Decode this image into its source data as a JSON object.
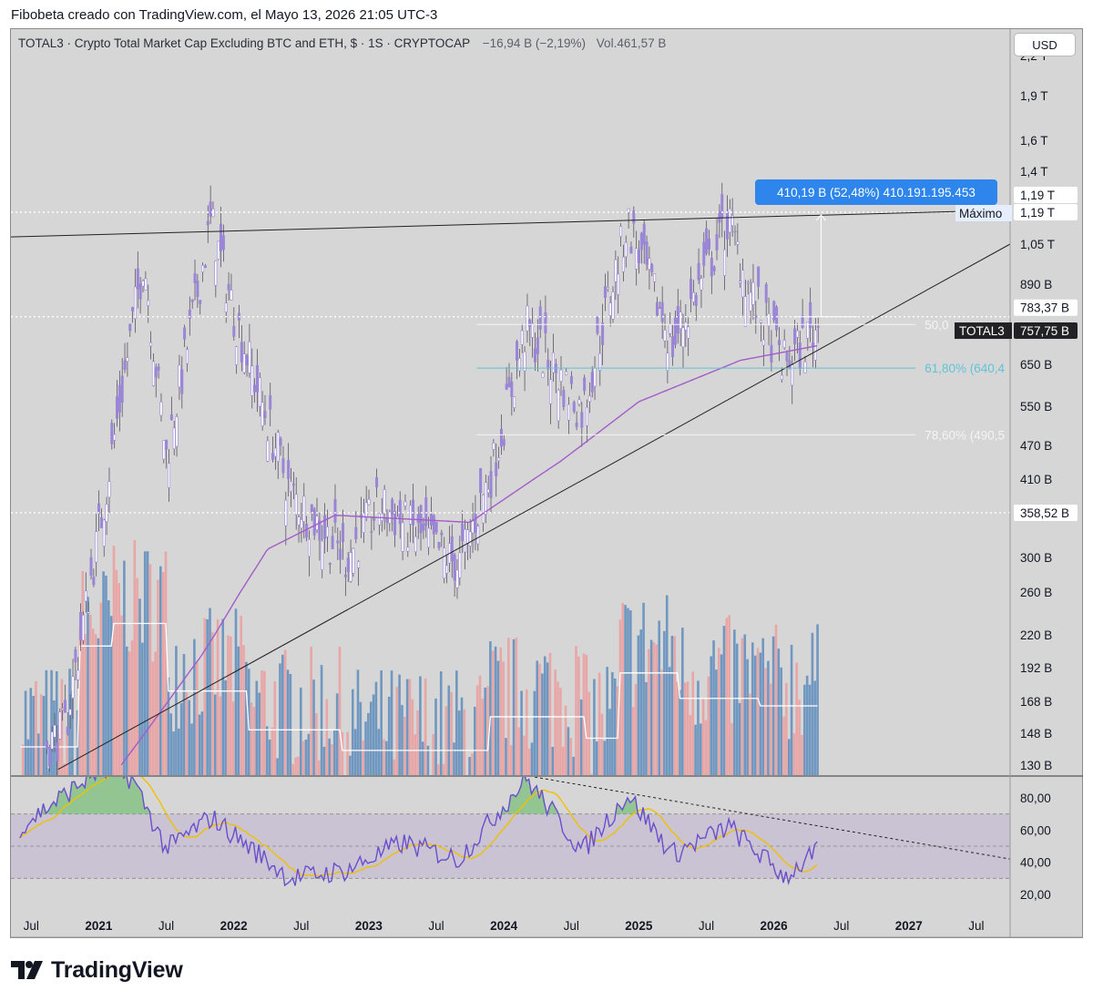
{
  "header": {
    "author_line": "Fibobeta creado con TradingView.com, el Mayo 13, 2026 21:05 UTC-3"
  },
  "legend": {
    "symbol": "TOTAL3 · Crypto Total Market Cap Excluding BTC and ETH, $ · 1S · CRYPTOCAP",
    "change": "−16,94 B (−2,19%)",
    "volume": "Vol.461,57 B"
  },
  "currency_button": "USD",
  "branding": {
    "wordmark": "TradingView",
    "logo_icon": "tradingview-logo-icon"
  },
  "colors": {
    "bg": "#d6d6d6",
    "candle": "#9a85d6",
    "ma": "#a35cc9",
    "rsi_line": "#6a4fcc",
    "rsi_ma": "#f0c000",
    "rsi_band": "#c9c3d4",
    "vol_up": "#6f97c0",
    "vol_down": "#e8a6a6",
    "measure": "#2e86ec",
    "fib_61": "#5fc4d6"
  },
  "price_axis": {
    "ticks": [
      "2,2 T",
      "1,9 T",
      "1,6 T",
      "1,4 T",
      "1,19 T",
      "1,05 T",
      "890 B",
      "650 B",
      "550 B",
      "470 B",
      "410 B",
      "300 B",
      "260 B",
      "220 B",
      "192 B",
      "168 B",
      "148 B",
      "130 B"
    ],
    "price_labels": [
      {
        "id": "high-a",
        "text": "1,19 T"
      },
      {
        "id": "high-b",
        "text": "1,19 T"
      },
      {
        "id": "prev",
        "text": "783,37 B"
      },
      {
        "id": "last",
        "text": "757,75 B",
        "symbol": "TOTAL3"
      },
      {
        "id": "low",
        "text": "358,52 B"
      }
    ],
    "high_label": "Máximo"
  },
  "time_axis": {
    "ticks": [
      {
        "label": "Jul",
        "year": false
      },
      {
        "label": "2021",
        "year": true
      },
      {
        "label": "Jul",
        "year": false
      },
      {
        "label": "2022",
        "year": true
      },
      {
        "label": "Jul",
        "year": false
      },
      {
        "label": "2023",
        "year": true
      },
      {
        "label": "Jul",
        "year": false
      },
      {
        "label": "2024",
        "year": true
      },
      {
        "label": "Jul",
        "year": false
      },
      {
        "label": "2025",
        "year": true
      },
      {
        "label": "Jul",
        "year": false
      },
      {
        "label": "2026",
        "year": true
      },
      {
        "label": "Jul",
        "year": false
      },
      {
        "label": "2027",
        "year": true
      },
      {
        "label": "Jul",
        "year": false
      }
    ]
  },
  "rsi_axis": {
    "ticks": [
      "80,00",
      "60,00",
      "40,00",
      "20,00"
    ],
    "band": [
      30,
      70
    ]
  },
  "annotations": {
    "measure_label": "410,19 B (52,48%) 410.191.195.453",
    "fib_levels": [
      {
        "pct": "50,00%",
        "label": "50,0"
      },
      {
        "pct": "61,80%",
        "label": "61,80% (640,4"
      },
      {
        "pct": "78,60%",
        "label": "78,60% (490,5"
      }
    ]
  },
  "chart_data": {
    "type": "candlestick",
    "symbol": "TOTAL3",
    "timeframe": "1S",
    "y_scale": "log",
    "y_range_usd_B": [
      125,
      2300
    ],
    "price_series_usd_B": [
      {
        "date": "2020-06",
        "close": 130
      },
      {
        "date": "2020-10",
        "close": 150
      },
      {
        "date": "2021-01",
        "close": 330
      },
      {
        "date": "2021-05",
        "close": 1000
      },
      {
        "date": "2021-07",
        "close": 450
      },
      {
        "date": "2021-11",
        "close": 1150
      },
      {
        "date": "2022-01",
        "close": 800
      },
      {
        "date": "2022-06",
        "close": 390
      },
      {
        "date": "2022-11",
        "close": 300
      },
      {
        "date": "2023-02",
        "close": 370
      },
      {
        "date": "2023-09",
        "close": 290
      },
      {
        "date": "2023-12",
        "close": 430
      },
      {
        "date": "2024-03",
        "close": 750
      },
      {
        "date": "2024-08",
        "close": 540
      },
      {
        "date": "2024-12",
        "close": 1150
      },
      {
        "date": "2025-04",
        "close": 700
      },
      {
        "date": "2025-09",
        "close": 1150
      },
      {
        "date": "2025-11",
        "close": 850
      },
      {
        "date": "2026-02",
        "close": 650
      },
      {
        "date": "2026-05",
        "close": 757.75
      }
    ],
    "moving_average_usd_B": [
      {
        "date": "2021-03",
        "value": 130
      },
      {
        "date": "2021-10",
        "value": 200
      },
      {
        "date": "2022-04",
        "value": 310
      },
      {
        "date": "2022-10",
        "value": 355
      },
      {
        "date": "2023-10",
        "value": 345
      },
      {
        "date": "2024-06",
        "value": 440
      },
      {
        "date": "2025-01",
        "value": 560
      },
      {
        "date": "2025-10",
        "value": 660
      },
      {
        "date": "2026-05",
        "value": 700
      }
    ],
    "levels_usd_B": {
      "all_time_high": 1190,
      "previous_close": 783.37,
      "last": 757.75,
      "low_line": 358.52,
      "fib_61_8": 640.4,
      "fib_78_6": 490.5
    },
    "measure": {
      "change_B": 410.19,
      "change_pct": 52.48,
      "change_raw": "410.191.195.453"
    },
    "rsi": {
      "range": [
        10,
        100
      ],
      "upper": 70,
      "lower": 30,
      "last": 47,
      "series": [
        {
          "date": "2020-06",
          "value": 62
        },
        {
          "date": "2021-01",
          "value": 97
        },
        {
          "date": "2021-04",
          "value": 92
        },
        {
          "date": "2021-07",
          "value": 48
        },
        {
          "date": "2021-11",
          "value": 68
        },
        {
          "date": "2022-06",
          "value": 30
        },
        {
          "date": "2022-11",
          "value": 35
        },
        {
          "date": "2023-04",
          "value": 52
        },
        {
          "date": "2023-09",
          "value": 42
        },
        {
          "date": "2024-03",
          "value": 92
        },
        {
          "date": "2024-08",
          "value": 47
        },
        {
          "date": "2024-12",
          "value": 82
        },
        {
          "date": "2025-04",
          "value": 45
        },
        {
          "date": "2025-09",
          "value": 62
        },
        {
          "date": "2026-02",
          "value": 31
        },
        {
          "date": "2026-05",
          "value": 47
        }
      ]
    },
    "volume_note": "weekly volume bars with moving average",
    "ylabel": "",
    "xlabel": ""
  }
}
